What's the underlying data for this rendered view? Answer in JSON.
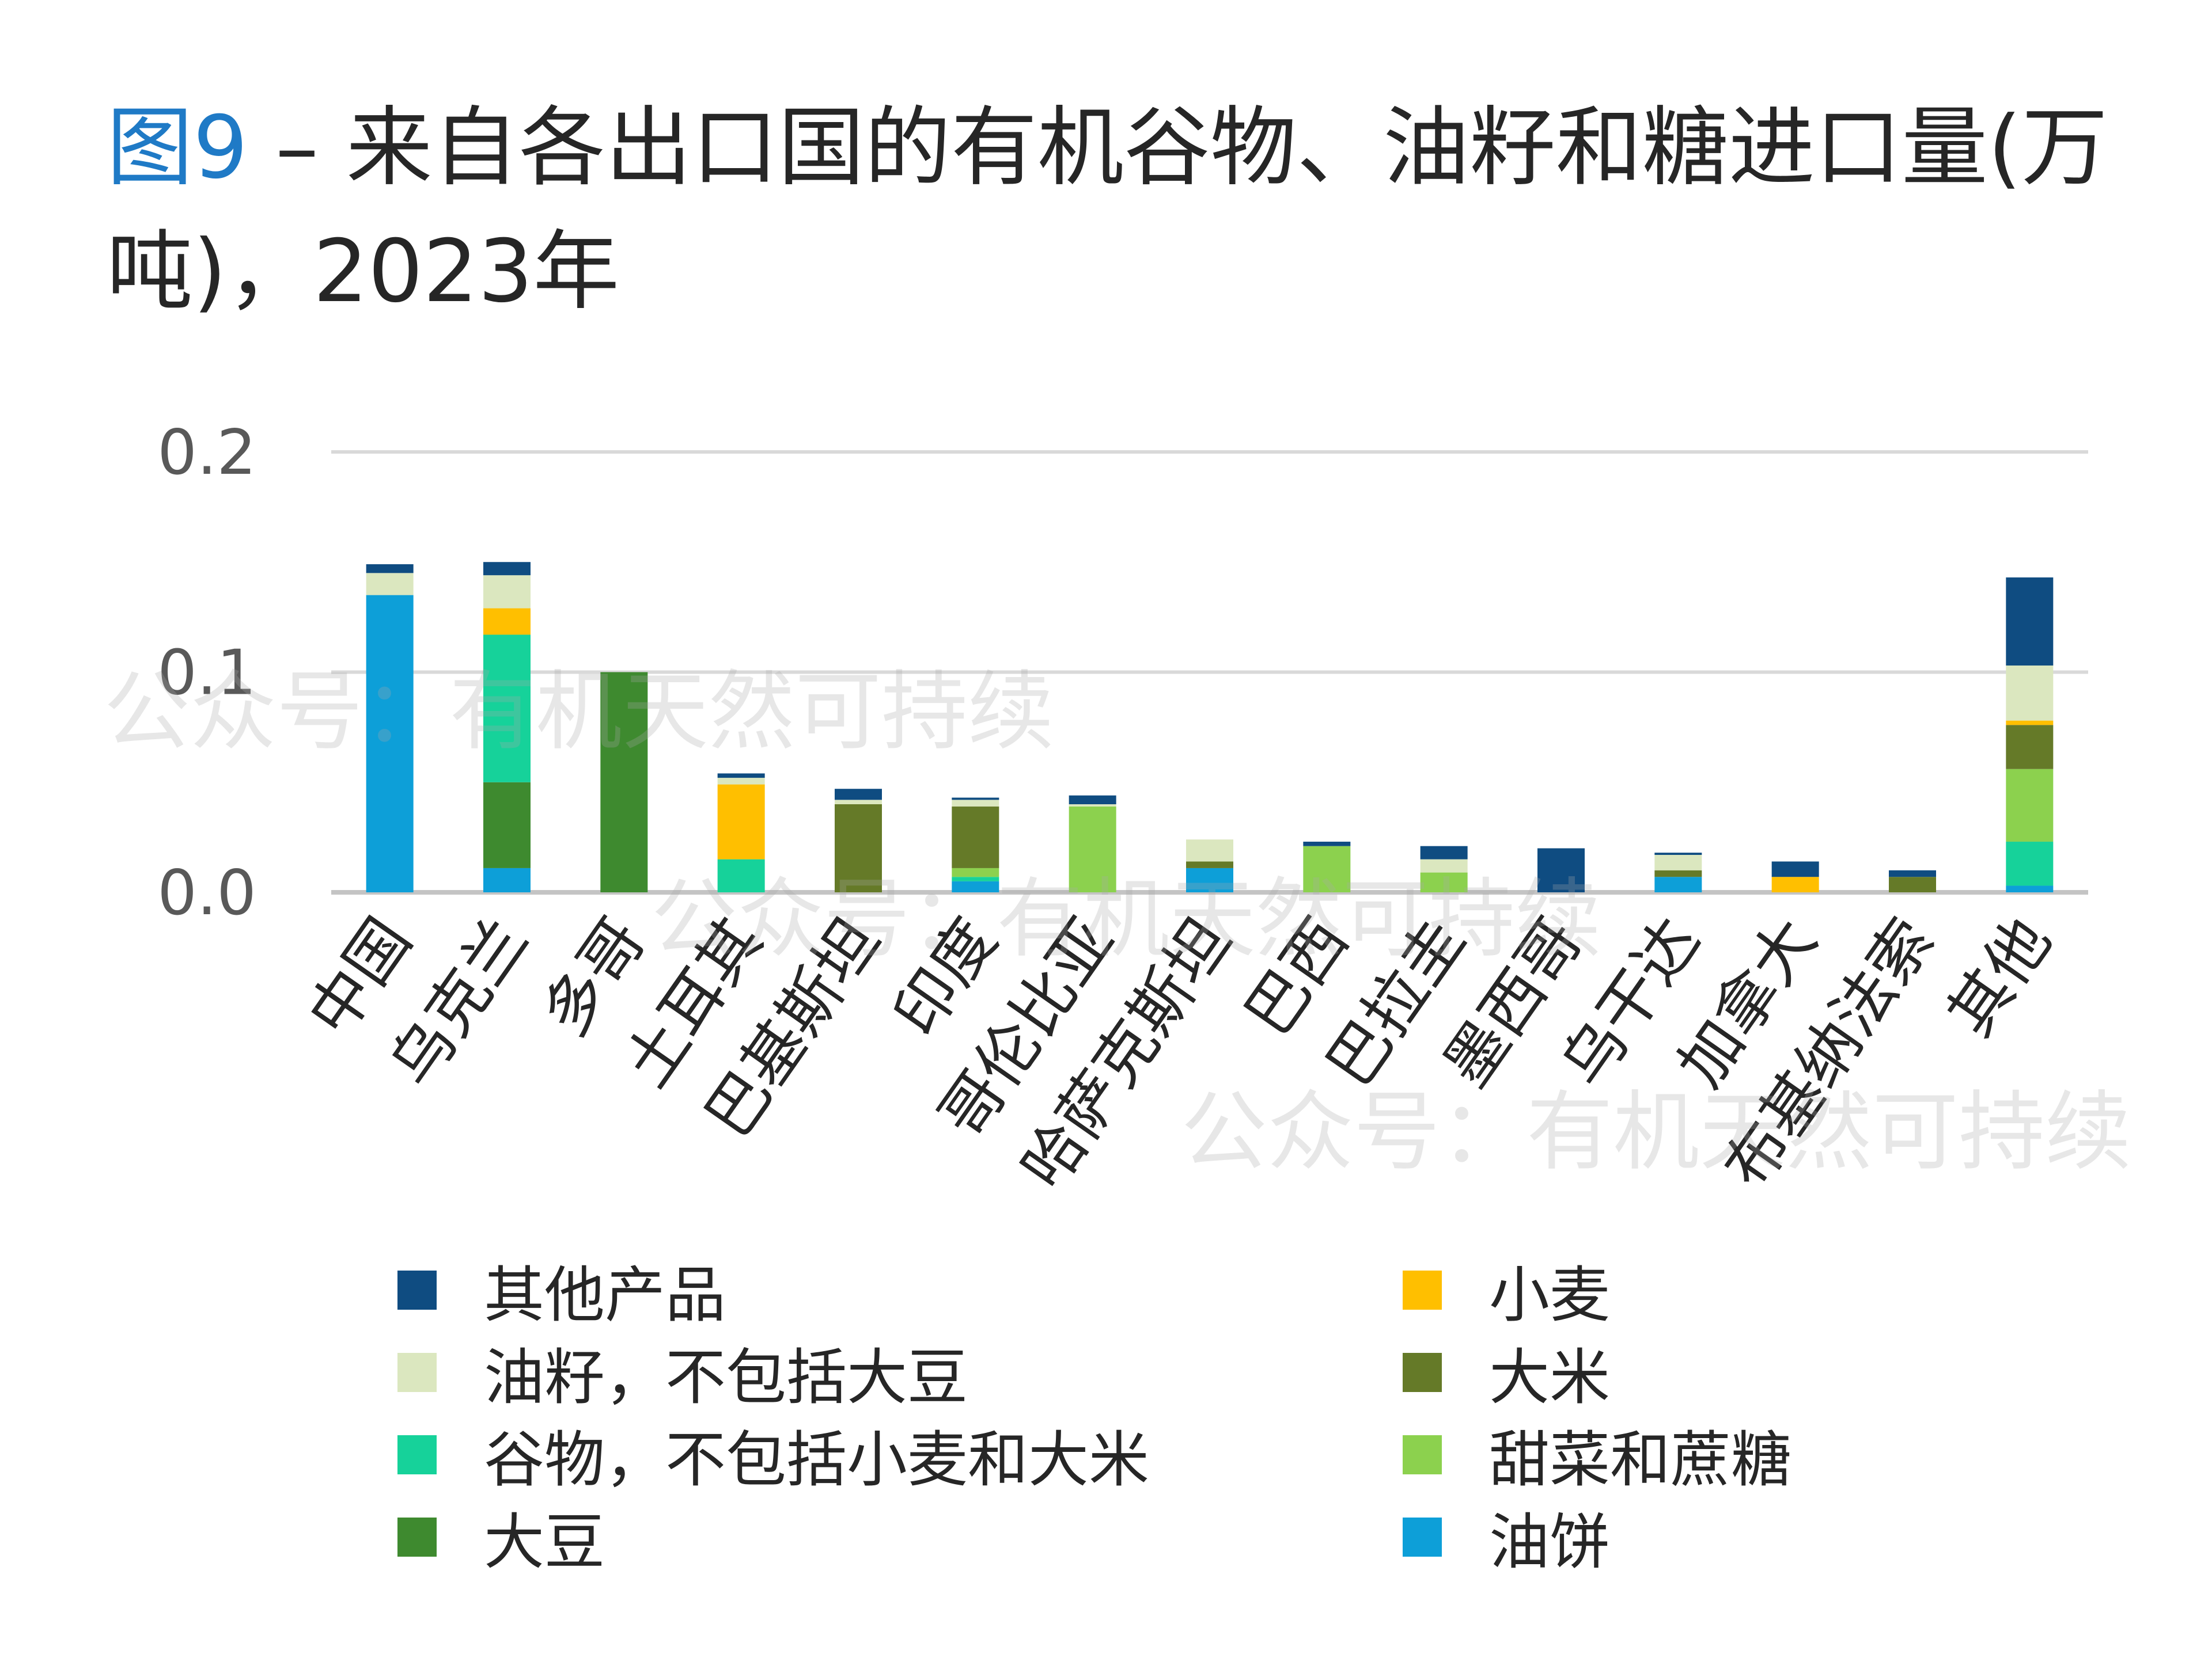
{
  "title": {
    "prefix": "图9",
    "text": " – 来自各出口国的有机谷物、油籽和糖进口量(万吨)，2023年"
  },
  "watermark": "公众号：有机天然可持续",
  "chart_data": {
    "type": "bar",
    "stacked": true,
    "categories": [
      "中国",
      "乌克兰",
      "多哥",
      "土耳其",
      "巴基斯坦",
      "印度",
      "哥伦比亚",
      "哈萨克斯坦",
      "巴西",
      "巴拉圭",
      "墨西哥",
      "乌干达",
      "加拿大",
      "布基纳法索",
      "其他"
    ],
    "ylim": [
      0,
      0.2
    ],
    "yticks": [
      0.0,
      0.1,
      0.2
    ],
    "ytick_labels": [
      "0.0",
      "0.1",
      "0.2"
    ],
    "grid": true,
    "legend_position": "bottom",
    "series": [
      {
        "name": "油饼",
        "color": "#0d9fd8",
        "values": [
          0.135,
          0.011,
          0,
          0,
          0,
          0.005,
          0,
          0.011,
          0,
          0,
          0,
          0.007,
          0,
          0,
          0.003
        ]
      },
      {
        "name": "大豆",
        "color": "#3e8a2f",
        "values": [
          0,
          0.039,
          0.1,
          0,
          0,
          0,
          0,
          0,
          0,
          0,
          0,
          0,
          0,
          0,
          0
        ]
      },
      {
        "name": "谷物，不包括小麦和大米",
        "color": "#16d29a",
        "values": [
          0,
          0.067,
          0,
          0.015,
          0,
          0.002,
          0,
          0,
          0,
          0,
          0,
          0,
          0,
          0,
          0.02
        ]
      },
      {
        "name": "甜菜和蔗糖",
        "color": "#8cd14e",
        "values": [
          0,
          0,
          0,
          0,
          0,
          0.004,
          0.039,
          0,
          0.021,
          0.009,
          0,
          0,
          0,
          0,
          0.033
        ]
      },
      {
        "name": "大米",
        "color": "#657a28",
        "values": [
          0,
          0,
          0,
          0,
          0.04,
          0.028,
          0,
          0.003,
          0,
          0,
          0,
          0.003,
          0,
          0.007,
          0.02
        ]
      },
      {
        "name": "小麦",
        "color": "#ffbf00",
        "values": [
          0,
          0.012,
          0,
          0.034,
          0,
          0,
          0,
          0,
          0,
          0,
          0,
          0,
          0.007,
          0,
          0.002
        ]
      },
      {
        "name": "油籽，不包括大豆",
        "color": "#dbe7bf",
        "values": [
          0.01,
          0.015,
          0,
          0.003,
          0.002,
          0.003,
          0.001,
          0.01,
          0,
          0.006,
          0,
          0.007,
          0,
          0,
          0.025
        ]
      },
      {
        "name": "其他产品",
        "color": "#0f4c81",
        "values": [
          0.004,
          0.006,
          0,
          0.002,
          0.005,
          0.001,
          0.004,
          0,
          0.002,
          0.006,
          0.02,
          0.001,
          0.007,
          0.003,
          0.04
        ]
      }
    ],
    "legend_order": [
      "其他产品",
      "小麦",
      "油籽，不包括大豆",
      "大米",
      "谷物，不包括小麦和大米",
      "甜菜和蔗糖",
      "大豆",
      "油饼"
    ]
  }
}
